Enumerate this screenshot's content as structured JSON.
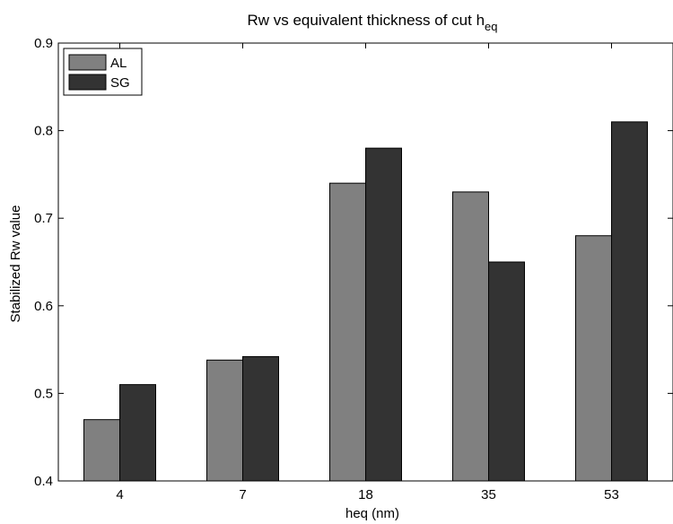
{
  "chart_data": {
    "type": "bar",
    "title": "Rw vs equivalent thickness of cut h",
    "title_subscript": "eq",
    "xlabel": "heq (nm)",
    "ylabel": "Stabilized Rw value",
    "categories": [
      "4",
      "7",
      "18",
      "35",
      "53"
    ],
    "series": [
      {
        "name": "AL",
        "color": "#808080",
        "values": [
          0.47,
          0.538,
          0.74,
          0.73,
          0.68
        ]
      },
      {
        "name": "SG",
        "color": "#333333",
        "values": [
          0.51,
          0.542,
          0.78,
          0.65,
          0.81
        ]
      }
    ],
    "ylim": [
      0.4,
      0.9
    ],
    "yticks": [
      "0.4",
      "0.5",
      "0.6",
      "0.7",
      "0.8",
      "0.9"
    ],
    "grid": false,
    "legend_position": "top-left"
  }
}
